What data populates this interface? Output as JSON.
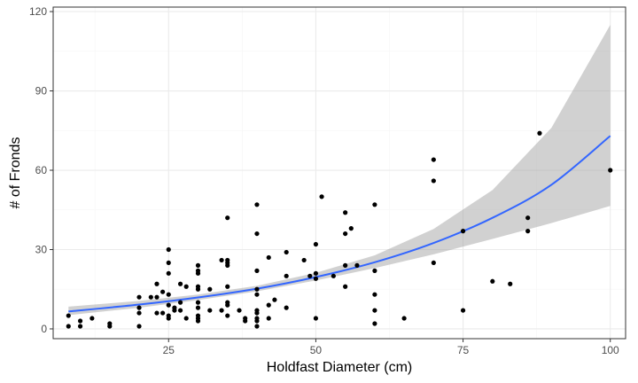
{
  "chart_data": {
    "type": "scatter",
    "title": "",
    "xlabel": "Holdfast Diameter (cm)",
    "ylabel": "# of Fronds",
    "xlim": [
      5.4,
      102.6
    ],
    "ylim": [
      -3.7,
      121.7
    ],
    "x_ticks": [
      {
        "value": 25,
        "label": "25"
      },
      {
        "value": 50,
        "label": "50"
      },
      {
        "value": 75,
        "label": "75"
      },
      {
        "value": 100,
        "label": "100"
      }
    ],
    "y_ticks": [
      {
        "value": 0,
        "label": "0"
      },
      {
        "value": 30,
        "label": "30"
      },
      {
        "value": 60,
        "label": "60"
      },
      {
        "value": 90,
        "label": "90"
      },
      {
        "value": 120,
        "label": "120"
      }
    ],
    "x_minor": [
      12.5,
      37.5,
      62.5,
      87.5
    ],
    "y_minor": [
      15,
      45,
      75,
      105
    ],
    "grid": true,
    "legend": "none",
    "colors": {
      "points": "#000000",
      "fit_line": "#3366ff",
      "ribbon": "#999999",
      "grid_major": "#ebebeb",
      "grid_minor": "#f5f5f5",
      "panel_border": "#333333"
    },
    "points": [
      {
        "x": 8,
        "y": 1
      },
      {
        "x": 8,
        "y": 5
      },
      {
        "x": 10,
        "y": 1
      },
      {
        "x": 10,
        "y": 3
      },
      {
        "x": 12,
        "y": 4
      },
      {
        "x": 15,
        "y": 1
      },
      {
        "x": 15,
        "y": 2
      },
      {
        "x": 20,
        "y": 1
      },
      {
        "x": 20,
        "y": 6
      },
      {
        "x": 20,
        "y": 8
      },
      {
        "x": 20,
        "y": 12
      },
      {
        "x": 22,
        "y": 12
      },
      {
        "x": 23,
        "y": 6
      },
      {
        "x": 23,
        "y": 12
      },
      {
        "x": 23,
        "y": 17
      },
      {
        "x": 24,
        "y": 6
      },
      {
        "x": 24,
        "y": 14
      },
      {
        "x": 25,
        "y": 4
      },
      {
        "x": 25,
        "y": 5
      },
      {
        "x": 25,
        "y": 9
      },
      {
        "x": 25,
        "y": 13
      },
      {
        "x": 25,
        "y": 21
      },
      {
        "x": 25,
        "y": 25
      },
      {
        "x": 25,
        "y": 30
      },
      {
        "x": 26,
        "y": 7
      },
      {
        "x": 26,
        "y": 8
      },
      {
        "x": 27,
        "y": 7
      },
      {
        "x": 27,
        "y": 10
      },
      {
        "x": 27,
        "y": 17
      },
      {
        "x": 28,
        "y": 4
      },
      {
        "x": 28,
        "y": 16
      },
      {
        "x": 30,
        "y": 3
      },
      {
        "x": 30,
        "y": 4
      },
      {
        "x": 30,
        "y": 5
      },
      {
        "x": 30,
        "y": 8
      },
      {
        "x": 30,
        "y": 10
      },
      {
        "x": 30,
        "y": 15
      },
      {
        "x": 30,
        "y": 16
      },
      {
        "x": 30,
        "y": 21
      },
      {
        "x": 30,
        "y": 22
      },
      {
        "x": 30,
        "y": 24
      },
      {
        "x": 32,
        "y": 7
      },
      {
        "x": 32,
        "y": 15
      },
      {
        "x": 34,
        "y": 7
      },
      {
        "x": 34,
        "y": 26
      },
      {
        "x": 35,
        "y": 5
      },
      {
        "x": 35,
        "y": 9
      },
      {
        "x": 35,
        "y": 10
      },
      {
        "x": 35,
        "y": 16
      },
      {
        "x": 35,
        "y": 24
      },
      {
        "x": 35,
        "y": 25
      },
      {
        "x": 35,
        "y": 26
      },
      {
        "x": 35,
        "y": 42
      },
      {
        "x": 37,
        "y": 7
      },
      {
        "x": 38,
        "y": 3
      },
      {
        "x": 38,
        "y": 4
      },
      {
        "x": 40,
        "y": 1
      },
      {
        "x": 40,
        "y": 3
      },
      {
        "x": 40,
        "y": 4
      },
      {
        "x": 40,
        "y": 6
      },
      {
        "x": 40,
        "y": 7
      },
      {
        "x": 40,
        "y": 13
      },
      {
        "x": 40,
        "y": 15
      },
      {
        "x": 40,
        "y": 22
      },
      {
        "x": 40,
        "y": 36
      },
      {
        "x": 40,
        "y": 47
      },
      {
        "x": 42,
        "y": 4
      },
      {
        "x": 42,
        "y": 9
      },
      {
        "x": 42,
        "y": 27
      },
      {
        "x": 43,
        "y": 11
      },
      {
        "x": 45,
        "y": 8
      },
      {
        "x": 45,
        "y": 20
      },
      {
        "x": 45,
        "y": 29
      },
      {
        "x": 48,
        "y": 26
      },
      {
        "x": 49,
        "y": 20
      },
      {
        "x": 50,
        "y": 4
      },
      {
        "x": 50,
        "y": 19
      },
      {
        "x": 50,
        "y": 21
      },
      {
        "x": 50,
        "y": 32
      },
      {
        "x": 51,
        "y": 50
      },
      {
        "x": 53,
        "y": 20
      },
      {
        "x": 55,
        "y": 16
      },
      {
        "x": 55,
        "y": 24
      },
      {
        "x": 55,
        "y": 36
      },
      {
        "x": 55,
        "y": 44
      },
      {
        "x": 56,
        "y": 38
      },
      {
        "x": 57,
        "y": 24
      },
      {
        "x": 60,
        "y": 2
      },
      {
        "x": 60,
        "y": 7
      },
      {
        "x": 60,
        "y": 13
      },
      {
        "x": 60,
        "y": 22
      },
      {
        "x": 60,
        "y": 47
      },
      {
        "x": 65,
        "y": 4
      },
      {
        "x": 70,
        "y": 25
      },
      {
        "x": 70,
        "y": 56
      },
      {
        "x": 70,
        "y": 64
      },
      {
        "x": 75,
        "y": 7
      },
      {
        "x": 75,
        "y": 37
      },
      {
        "x": 80,
        "y": 18
      },
      {
        "x": 83,
        "y": 17
      },
      {
        "x": 86,
        "y": 37
      },
      {
        "x": 86,
        "y": 42
      },
      {
        "x": 88,
        "y": 74
      },
      {
        "x": 100,
        "y": 60
      }
    ],
    "fit": {
      "x": [
        8,
        20,
        30,
        40,
        50,
        60,
        70,
        80,
        90,
        100
      ],
      "y": [
        6.6,
        9.2,
        11.9,
        15.2,
        19.6,
        25.2,
        32.5,
        42.0,
        54.5,
        73.0
      ]
    },
    "ribbon": {
      "x": [
        8,
        20,
        30,
        40,
        50,
        60,
        70,
        80,
        90,
        100
      ],
      "lower": [
        5.2,
        8.0,
        10.9,
        14.2,
        18.3,
        23.0,
        28.2,
        34.0,
        40.0,
        46.5
      ],
      "upper": [
        8.4,
        10.6,
        13.0,
        16.3,
        21.2,
        27.8,
        37.8,
        52.5,
        76.0,
        115.0
      ]
    }
  }
}
